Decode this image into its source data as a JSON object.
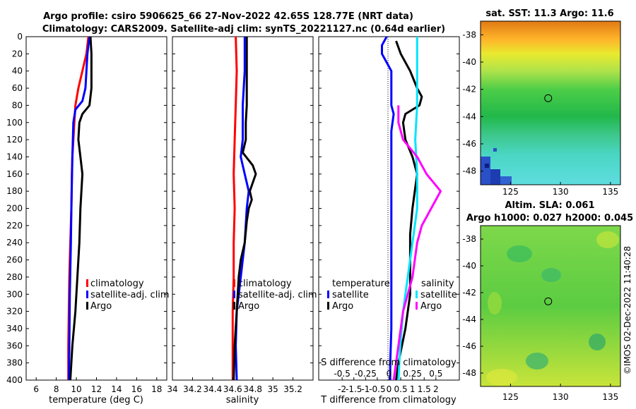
{
  "title": {
    "line1": "Argo profile: csiro 5906625_66 27-Nov-2022 42.65S 128.77E (NRT data)",
    "line2": "Climatology: CARS2009. Satellite-adj clim: synTS_20221127.nc (0.64d earlier)"
  },
  "footer": "©IMOS 02-Dec-2022 11:40:28",
  "colors": {
    "climatology": "#ff0000",
    "satellite": "#0000ff",
    "argo": "#000000",
    "s_satellite": "#00e5ff",
    "s_argo": "#ff00ff"
  },
  "depth_ticks": [
    "0",
    "20",
    "40",
    "60",
    "80",
    "100",
    "120",
    "140",
    "160",
    "180",
    "200",
    "220",
    "240",
    "260",
    "280",
    "300",
    "320",
    "340",
    "360",
    "380",
    "400"
  ],
  "chart_data": [
    {
      "type": "line",
      "name": "temperature-profile",
      "xlabel": "temperature (deg C)",
      "ylabel": "depth (m)",
      "xlim": [
        5,
        19
      ],
      "ylim": [
        400,
        0
      ],
      "xticks": [
        "6",
        "8",
        "10",
        "12",
        "14",
        "16",
        "18"
      ],
      "legend": [
        "climatology",
        "satellite-adj. clim",
        "Argo"
      ],
      "series": [
        {
          "name": "climatology",
          "depth": [
            0,
            20,
            40,
            60,
            80,
            100,
            120,
            140,
            160,
            200,
            240,
            280,
            320,
            360,
            400
          ],
          "values": [
            11.2,
            11.0,
            10.6,
            10.2,
            9.9,
            9.8,
            9.7,
            9.6,
            9.55,
            9.5,
            9.4,
            9.3,
            9.25,
            9.2,
            9.2
          ]
        },
        {
          "name": "satellite-adj. clim",
          "depth": [
            0,
            20,
            40,
            60,
            75,
            85,
            100,
            140,
            200,
            240,
            300,
            360,
            400
          ],
          "values": [
            11.3,
            11.1,
            11.0,
            10.9,
            10.6,
            9.9,
            9.7,
            9.6,
            9.5,
            9.45,
            9.35,
            9.3,
            9.25
          ]
        },
        {
          "name": "Argo",
          "depth": [
            0,
            20,
            40,
            60,
            80,
            90,
            100,
            120,
            140,
            160,
            180,
            200,
            240,
            280,
            320,
            360,
            400
          ],
          "values": [
            11.4,
            11.5,
            11.5,
            11.5,
            11.3,
            10.6,
            10.3,
            10.2,
            10.4,
            10.6,
            10.5,
            10.4,
            10.3,
            10.1,
            9.9,
            9.6,
            9.4
          ]
        }
      ]
    },
    {
      "type": "line",
      "name": "salinity-profile",
      "xlabel": "salinity",
      "ylabel": "depth (m)",
      "xlim": [
        34.0,
        35.4
      ],
      "ylim": [
        400,
        0
      ],
      "xticks": [
        "34",
        "34.2",
        "34.4",
        "34.6",
        "34.8",
        "35",
        "35.2"
      ],
      "legend": [
        "climatology",
        "satellite-adj. clim",
        "Argo"
      ],
      "series": [
        {
          "name": "climatology",
          "depth": [
            0,
            40,
            80,
            120,
            160,
            200,
            240,
            280,
            320,
            360,
            400
          ],
          "values": [
            34.63,
            34.64,
            34.63,
            34.62,
            34.61,
            34.62,
            34.61,
            34.61,
            34.6,
            34.6,
            34.6
          ]
        },
        {
          "name": "satellite-adj. clim",
          "depth": [
            0,
            40,
            80,
            100,
            120,
            140,
            160,
            180,
            200,
            240,
            280,
            320,
            360,
            400
          ],
          "values": [
            34.72,
            34.72,
            34.7,
            34.7,
            34.7,
            34.68,
            34.72,
            34.76,
            34.74,
            34.72,
            34.68,
            34.64,
            34.63,
            34.64
          ]
        },
        {
          "name": "Argo",
          "depth": [
            0,
            40,
            80,
            100,
            120,
            135,
            150,
            160,
            170,
            180,
            190,
            200,
            215,
            240,
            260,
            280,
            320,
            360,
            400
          ],
          "values": [
            34.74,
            34.74,
            34.74,
            34.73,
            34.73,
            34.7,
            34.8,
            34.83,
            34.8,
            34.77,
            34.79,
            34.76,
            34.74,
            34.72,
            34.68,
            34.66,
            34.64,
            34.62,
            34.61
          ]
        }
      ]
    },
    {
      "type": "line",
      "name": "difference-profile",
      "xlabel": "T difference from climatology",
      "xlabel_top": "S difference from climatology",
      "ylabel": "depth (m)",
      "xlim": [
        -3,
        3
      ],
      "ylim": [
        400,
        0
      ],
      "xticks": [
        "-2",
        "-1.5",
        "-1",
        "-0.5",
        "0",
        "0.5",
        "1",
        "1.5",
        "2"
      ],
      "xticks_top": [
        "-0.5",
        "-0.25",
        "0",
        "0.25",
        "0.5"
      ],
      "legend_left": {
        "title": "temperature",
        "items": [
          "satellite",
          "Argo"
        ]
      },
      "legend_right": {
        "title": "salinity",
        "items": [
          "satellite",
          "Argo"
        ]
      },
      "series": [
        {
          "name": "temperature satellite",
          "depth": [
            0,
            10,
            20,
            40,
            60,
            80,
            90,
            110,
            140,
            180,
            220,
            260,
            300,
            340,
            380,
            400
          ],
          "values": [
            -0.1,
            -0.3,
            -0.3,
            0.1,
            0.1,
            0.1,
            0.2,
            0.1,
            0.1,
            0.1,
            0.1,
            0.1,
            0.1,
            0.1,
            0.05,
            0.05
          ]
        },
        {
          "name": "temperature Argo",
          "depth": [
            5,
            20,
            40,
            60,
            70,
            80,
            90,
            100,
            120,
            140,
            160,
            180,
            200,
            230,
            260,
            300,
            340,
            380,
            400
          ],
          "values": [
            0.3,
            0.5,
            0.9,
            1.2,
            1.4,
            1.3,
            0.7,
            0.6,
            0.7,
            1.0,
            1.2,
            1.1,
            1.0,
            0.9,
            0.9,
            0.9,
            0.7,
            0.4,
            0.3
          ]
        },
        {
          "name": "salinity satellite",
          "depth": [
            0,
            40,
            80,
            120,
            160,
            200,
            240,
            280,
            320,
            360,
            400
          ],
          "values": [
            0.3,
            0.3,
            0.3,
            0.28,
            0.3,
            0.3,
            0.25,
            0.2,
            0.15,
            0.12,
            0.1
          ]
        },
        {
          "name": "salinity Argo",
          "depth": [
            80,
            100,
            120,
            140,
            160,
            180,
            200,
            220,
            240,
            280,
            320,
            360,
            400
          ],
          "values": [
            0.1,
            0.1,
            0.15,
            0.3,
            0.4,
            0.55,
            0.45,
            0.35,
            0.3,
            0.25,
            0.15,
            0.1,
            0.05
          ]
        }
      ]
    },
    {
      "type": "heatmap",
      "name": "sst-map",
      "title": "sat. SST: 11.3 Argo: 11.6",
      "xlim": [
        122,
        136
      ],
      "ylim": [
        -49,
        -37
      ],
      "xticks": [
        "125",
        "130",
        "135"
      ],
      "yticks": [
        "-38",
        "-40",
        "-42",
        "-44",
        "-46",
        "-48"
      ],
      "argo_position": [
        128.77,
        -42.65
      ]
    },
    {
      "type": "heatmap",
      "name": "sla-map",
      "title": "Altim. SLA: 0.061",
      "subtitle": "Argo h1000: 0.027 h2000: 0.045",
      "xlim": [
        122,
        136
      ],
      "ylim": [
        -49,
        -37
      ],
      "xticks": [
        "125",
        "130",
        "135"
      ],
      "yticks": [
        "-38",
        "-40",
        "-42",
        "-44",
        "-46",
        "-48"
      ],
      "argo_position": [
        128.77,
        -42.65
      ]
    }
  ]
}
